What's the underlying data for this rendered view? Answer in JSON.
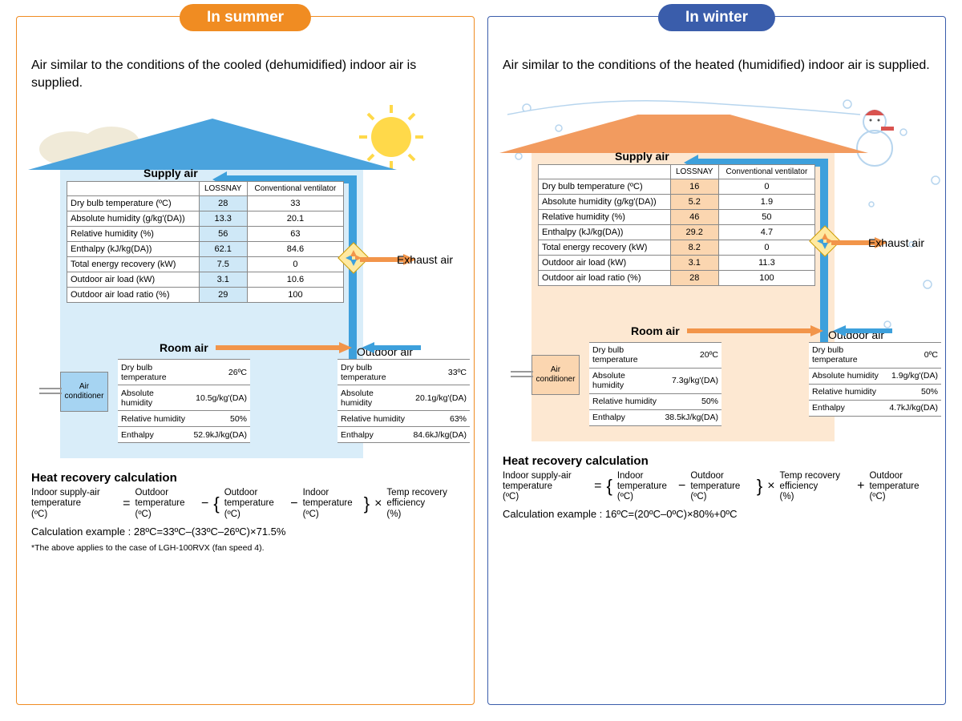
{
  "summer": {
    "tab": "In summer",
    "tab_bg": "#f08c22",
    "border": "#f08c22",
    "desc": "Air similar to the conditions of the cooled (dehumidified) indoor air is supplied.",
    "roof_color": "#4aa3dd",
    "body_bg": "#d9edf9",
    "ac_bg": "#a6d4f2",
    "supply": {
      "label": "Supply air",
      "col1": "LOSSNAY",
      "col2": "Conventional ventilator",
      "lossnay_bg": "#cfe8f7",
      "rows": [
        {
          "p": "Dry bulb temperature (ºC)",
          "a": "28",
          "b": "33"
        },
        {
          "p": "Absolute humidity (g/kg'(DA))",
          "a": "13.3",
          "b": "20.1"
        },
        {
          "p": "Relative humidity (%)",
          "a": "56",
          "b": "63"
        },
        {
          "p": "Enthalpy (kJ/kg(DA))",
          "a": "62.1",
          "b": "84.6"
        },
        {
          "p": "Total energy recovery (kW)",
          "a": "7.5",
          "b": "0"
        },
        {
          "p": "Outdoor air load (kW)",
          "a": "3.1",
          "b": "10.6"
        },
        {
          "p": "Outdoor air load ratio (%)",
          "a": "29",
          "b": "100"
        }
      ]
    },
    "room": {
      "label": "Room air",
      "rows": [
        {
          "p": "Dry bulb temperature",
          "v": "26ºC"
        },
        {
          "p": "Absolute humidity",
          "v": "10.5g/kg'(DA)"
        },
        {
          "p": "Relative humidity",
          "v": "50%"
        },
        {
          "p": "Enthalpy",
          "v": "52.9kJ/kg(DA)"
        }
      ]
    },
    "outdoor": {
      "label": "Outdoor air",
      "rows": [
        {
          "p": "Dry bulb temperature",
          "v": "33ºC"
        },
        {
          "p": "Absolute humidity",
          "v": "20.1g/kg'(DA)"
        },
        {
          "p": "Relative humidity",
          "v": "63%"
        },
        {
          "p": "Enthalpy",
          "v": "84.6kJ/kg(DA)"
        }
      ]
    },
    "exhaust_label": "Exhaust air",
    "ac_label": "Air conditioner",
    "calc_title": "Heat recovery calculation",
    "formula": [
      "Indoor supply-air temperature (ºC)",
      "=",
      "Outdoor temperature (ºC)",
      "−",
      "Outdoor temperature (ºC)",
      "−",
      "Indoor temperature (ºC)",
      "×",
      "Temp recovery efficiency (%)"
    ],
    "calc_example": "Calculation example : 28ºC=33ºC–(33ºC–26ºC)×71.5%",
    "footnote": "*The above applies to the case of LGH-100RVX (fan speed 4)."
  },
  "winter": {
    "tab": "In winter",
    "tab_bg": "#3a5dab",
    "border": "#3a5dab",
    "desc": "Air similar to the conditions of the heated (humidified) indoor air is supplied.",
    "roof_color": "#f29b5f",
    "body_bg": "#fde8d2",
    "ac_bg": "#fbd6b0",
    "supply": {
      "label": "Supply air",
      "col1": "LOSSNAY",
      "col2": "Conventional ventilator",
      "lossnay_bg": "#fbd6b0",
      "rows": [
        {
          "p": "Dry bulb temperature (ºC)",
          "a": "16",
          "b": "0"
        },
        {
          "p": "Absolute humidity (g/kg'(DA))",
          "a": "5.2",
          "b": "1.9"
        },
        {
          "p": "Relative humidity (%)",
          "a": "46",
          "b": "50"
        },
        {
          "p": "Enthalpy (kJ/kg(DA))",
          "a": "29.2",
          "b": "4.7"
        },
        {
          "p": "Total energy recovery (kW)",
          "a": "8.2",
          "b": "0"
        },
        {
          "p": "Outdoor air load (kW)",
          "a": "3.1",
          "b": "11.3"
        },
        {
          "p": "Outdoor air load ratio (%)",
          "a": "28",
          "b": "100"
        }
      ]
    },
    "room": {
      "label": "Room air",
      "rows": [
        {
          "p": "Dry bulb temperature",
          "v": "20ºC"
        },
        {
          "p": "Absolute humidity",
          "v": "7.3g/kg'(DA)"
        },
        {
          "p": "Relative humidity",
          "v": "50%"
        },
        {
          "p": "Enthalpy",
          "v": "38.5kJ/kg(DA)"
        }
      ]
    },
    "outdoor": {
      "label": "Outdoor air",
      "rows": [
        {
          "p": "Dry bulb temperature",
          "v": "0ºC"
        },
        {
          "p": "Absolute humidity",
          "v": "1.9g/kg'(DA)"
        },
        {
          "p": "Relative humidity",
          "v": "50%"
        },
        {
          "p": "Enthalpy",
          "v": "4.7kJ/kg(DA)"
        }
      ]
    },
    "exhaust_label": "Exhaust air",
    "ac_label": "Air conditioner",
    "calc_title": "Heat recovery calculation",
    "formula": [
      "Indoor supply-air temperature (ºC)",
      "=",
      "Indoor temperature (ºC)",
      "−",
      "Outdoor temperature (ºC)",
      "×",
      "Temp recovery efficiency (%)",
      "+",
      "Outdoor temperature (ºC)"
    ],
    "calc_example": "Calculation example : 16ºC=(20ºC–0ºC)×80%+0ºC",
    "footnote": ""
  },
  "colors": {
    "exhaust_arrow": "#f2954a",
    "supply_arrow": "#3da0dc"
  }
}
